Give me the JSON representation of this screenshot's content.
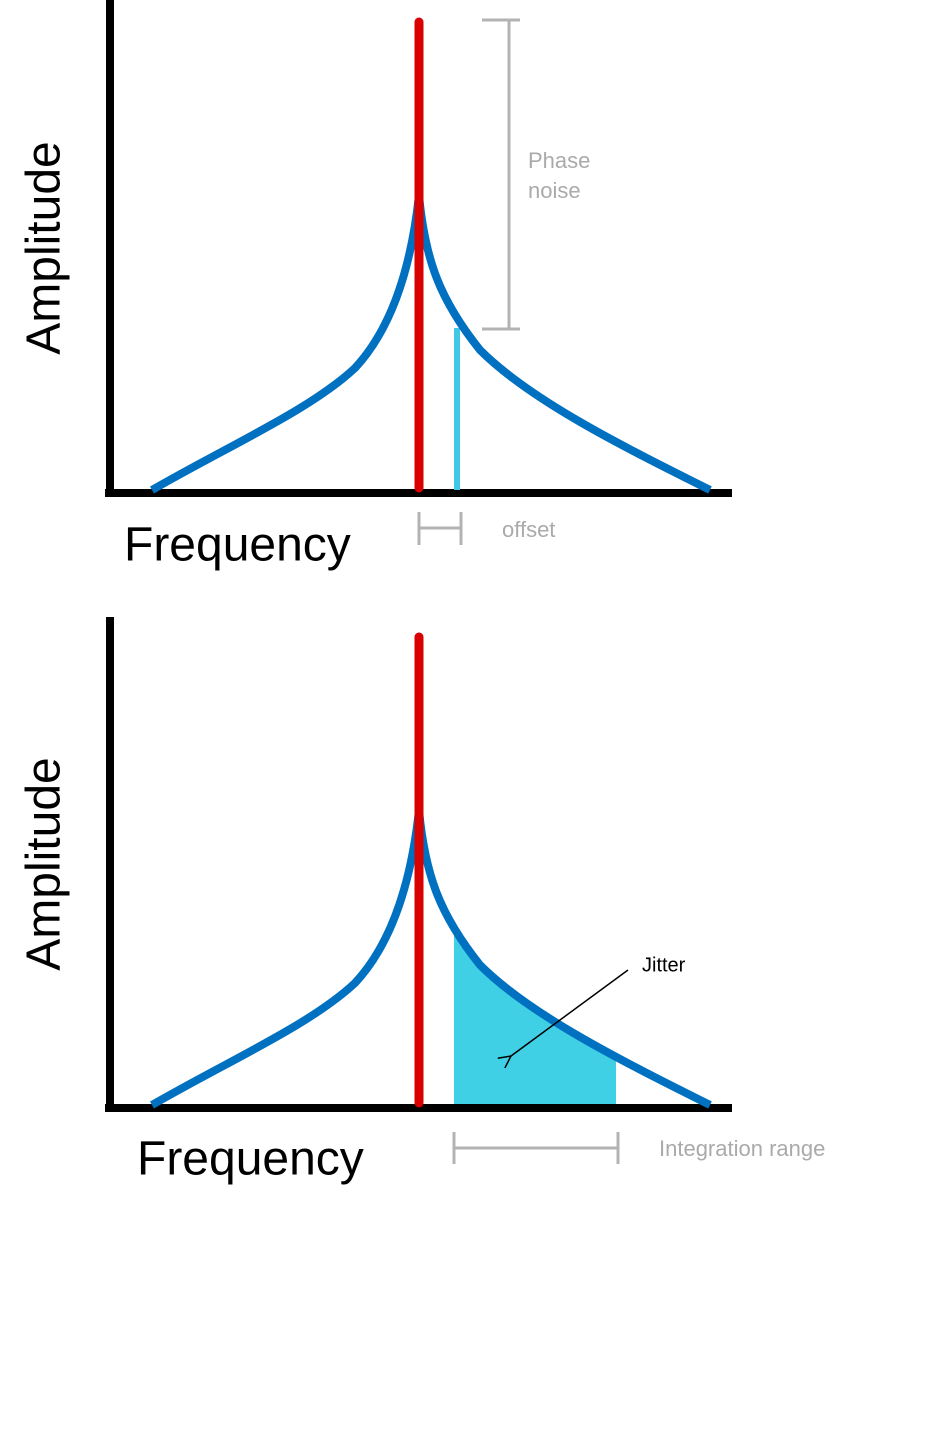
{
  "panels": [
    {
      "y_axis_label": "Amplitude",
      "x_axis_label": "Frequency",
      "annotations": {
        "phase_noise": [
          "Phase",
          "noise"
        ],
        "offset": "offset"
      }
    },
    {
      "y_axis_label": "Amplitude",
      "x_axis_label": "Frequency",
      "annotations": {
        "jitter": "Jitter",
        "integration_range": "Integration range"
      }
    }
  ]
}
